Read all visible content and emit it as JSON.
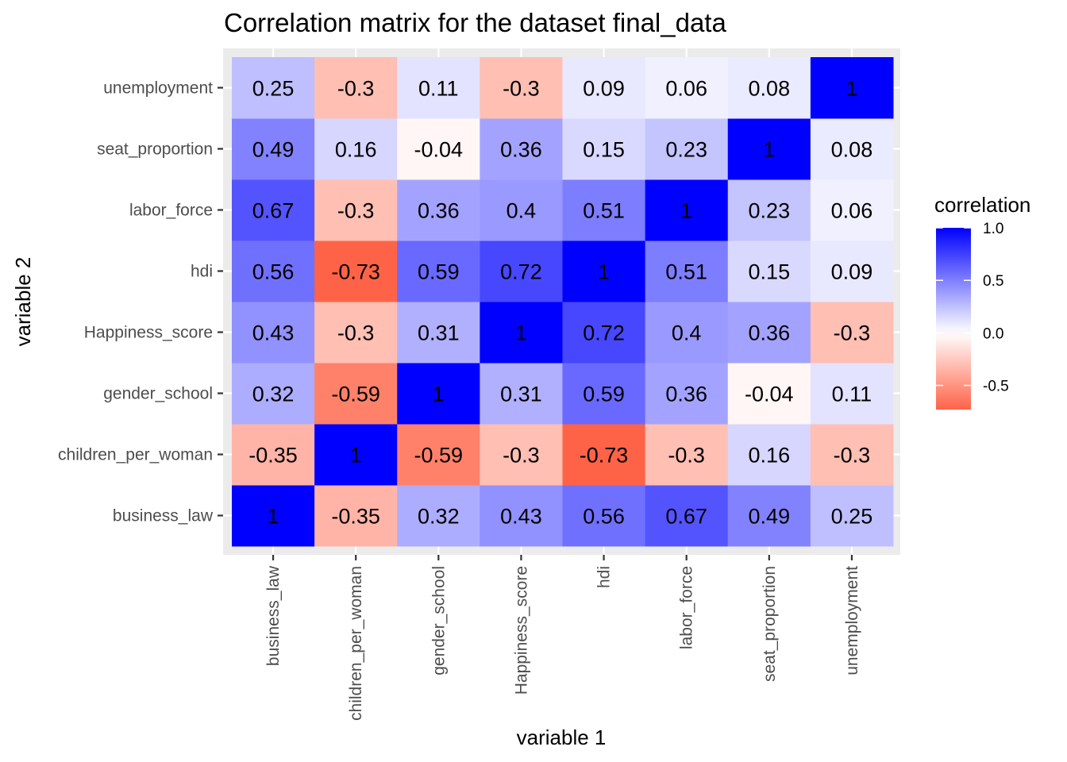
{
  "chart_data": {
    "type": "heatmap",
    "title": "Correlation matrix for the dataset final_data",
    "xlabel": "variable 1",
    "ylabel": "variable 2",
    "x_categories": [
      "business_law",
      "children_per_woman",
      "gender_school",
      "Happiness_score",
      "hdi",
      "labor_force",
      "seat_proportion",
      "unemployment"
    ],
    "y_categories": [
      "business_law",
      "children_per_woman",
      "gender_school",
      "Happiness_score",
      "hdi",
      "labor_force",
      "seat_proportion",
      "unemployment"
    ],
    "values": [
      [
        1,
        -0.35,
        0.32,
        0.43,
        0.56,
        0.67,
        0.49,
        0.25
      ],
      [
        -0.35,
        1,
        -0.59,
        -0.3,
        -0.73,
        -0.3,
        0.16,
        -0.3
      ],
      [
        0.32,
        -0.59,
        1,
        0.31,
        0.59,
        0.36,
        -0.04,
        0.11
      ],
      [
        0.43,
        -0.3,
        0.31,
        1,
        0.72,
        0.4,
        0.36,
        -0.3
      ],
      [
        0.56,
        -0.73,
        0.59,
        0.72,
        1,
        0.51,
        0.15,
        0.09
      ],
      [
        0.67,
        -0.3,
        0.36,
        0.4,
        0.51,
        1,
        0.23,
        0.06
      ],
      [
        0.49,
        0.16,
        -0.04,
        0.36,
        0.15,
        0.23,
        1,
        0.08
      ],
      [
        0.25,
        -0.3,
        0.11,
        -0.3,
        0.09,
        0.06,
        0.08,
        1
      ]
    ],
    "legend": {
      "title": "correlation",
      "ticks": [
        "1.0",
        "0.5",
        "0.0",
        "-0.5"
      ],
      "tick_values": [
        1.0,
        0.5,
        0.0,
        -0.5
      ],
      "range": [
        -0.73,
        1.0
      ],
      "placement": "right"
    },
    "colors": {
      "high": "#0000ff",
      "mid": "#ffffff",
      "low": "#ff6347",
      "panel_background": "#ebebeb"
    },
    "grid": true
  }
}
